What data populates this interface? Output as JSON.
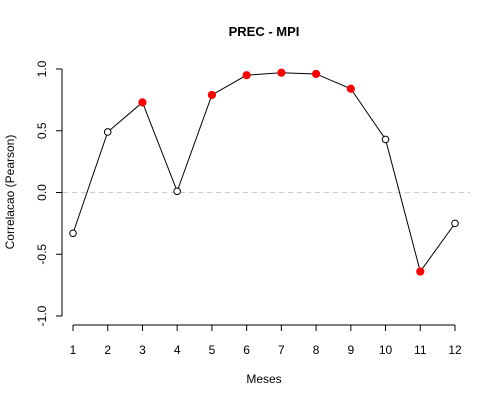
{
  "chart_data": {
    "type": "line",
    "title": "PREC - MPI",
    "xlabel": "Meses",
    "ylabel": "Correlacao (Pearson)",
    "x": [
      1,
      2,
      3,
      4,
      5,
      6,
      7,
      8,
      9,
      10,
      11,
      12
    ],
    "x_tick_labels": [
      "1",
      "2",
      "3",
      "4",
      "5",
      "6",
      "7",
      "8",
      "9",
      "10",
      "11",
      "12"
    ],
    "y_ticks": [
      -1.0,
      -0.5,
      0.0,
      0.5,
      1.0
    ],
    "y_tick_labels": [
      "-1.0",
      "-0.5",
      "0.0",
      "0.5",
      "1.0"
    ],
    "ylim": [
      -1.0,
      1.0
    ],
    "xlim": [
      1,
      12
    ],
    "grid": false,
    "reference_line": {
      "y": 0.0,
      "color": "#cccccc",
      "style": "dashed"
    },
    "series": [
      {
        "values": [
          -0.33,
          0.49,
          0.73,
          0.01,
          0.79,
          0.95,
          0.97,
          0.96,
          0.84,
          0.43,
          -0.64,
          -0.25
        ],
        "significant": [
          false,
          false,
          true,
          false,
          true,
          true,
          true,
          true,
          true,
          false,
          true,
          false
        ],
        "line_color": "#000000",
        "open_marker_color": "#000000",
        "significant_marker_color": "#ff0000"
      }
    ]
  }
}
